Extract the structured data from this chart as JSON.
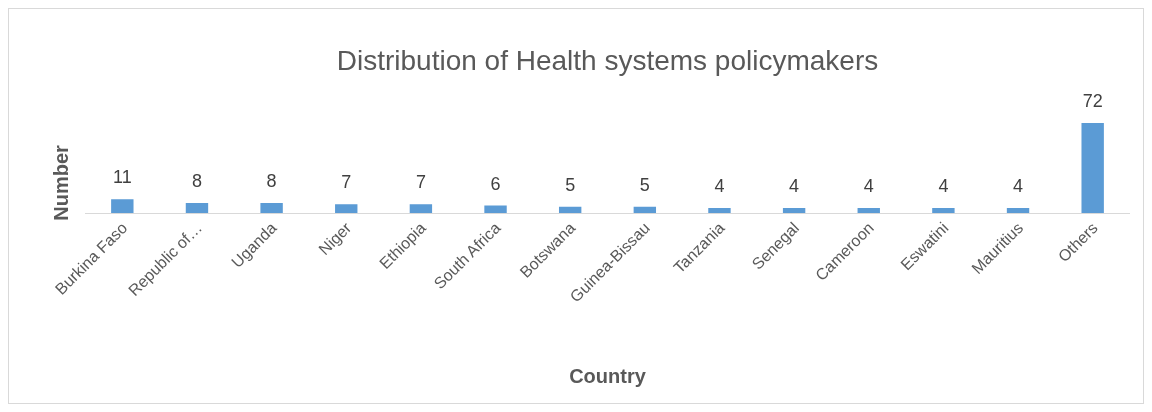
{
  "chart_data": {
    "type": "bar",
    "title": "Distribution of Health systems policymakers",
    "xlabel": "Country",
    "ylabel": "Number",
    "categories": [
      "Burkina Faso",
      "Republic of…",
      "Uganda",
      "Niger",
      "Ethiopia",
      "South Africa",
      "Botswana",
      "Guinea-Bissau",
      "Tanzania",
      "Senegal",
      "Cameroon",
      "Eswatini",
      "Mauritius",
      "Others"
    ],
    "values": [
      11,
      8,
      8,
      7,
      7,
      6,
      5,
      5,
      4,
      4,
      4,
      4,
      4,
      72
    ],
    "color": "#5b9bd5",
    "data_labels": true
  }
}
